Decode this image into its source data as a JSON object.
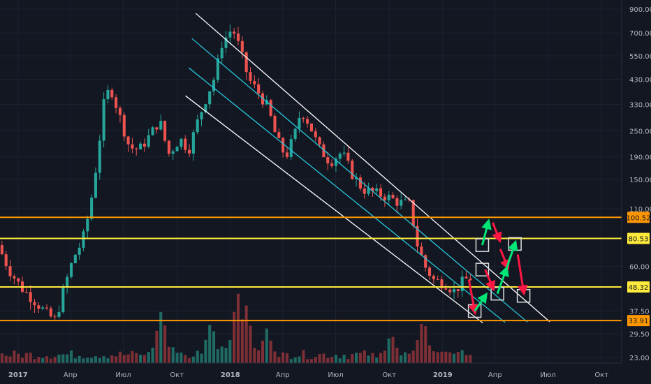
{
  "chart_data": {
    "type": "candlestick",
    "scale": "log",
    "grid": true,
    "ylim": [
      22,
      1000
    ],
    "y_ticks": [
      "900.00",
      "700.00",
      "550.00",
      "430.00",
      "330.00",
      "250.00",
      "190.00",
      "150.00",
      "110.00",
      "60.00",
      "37.50",
      "29.50",
      "23.00"
    ],
    "x_ticks": [
      "2017",
      "Апр",
      "Июл",
      "Окт",
      "2018",
      "Апр",
      "Июл",
      "Окт",
      "2019",
      "Апр",
      "Июл",
      "Окт"
    ],
    "levels": [
      {
        "label": "100.52",
        "value": 100.52,
        "color": "#ff9800"
      },
      {
        "label": "80.53",
        "value": 80.53,
        "color": "#ffeb3b"
      },
      {
        "label": "48.32",
        "value": 48.32,
        "color": "#ffeb3b"
      },
      {
        "label": "33.91",
        "value": 33.91,
        "color": "#ff9800"
      }
    ],
    "channel": {
      "outer_color": "#ffffff",
      "inner_color": "#26c6da",
      "start": "2017-11-15",
      "end": "2019-07-01"
    },
    "colors": {
      "up": "#26a69a",
      "down": "#ef5350",
      "volume_up": "#1f6b64",
      "volume_down": "#7d2f35",
      "background": "#131722",
      "grid": "#1e2230",
      "arrow_up": "#00e676",
      "arrow_down": "#ff1744"
    },
    "price_path": [
      [
        "2016-12-01",
        75
      ],
      [
        "2016-12-20",
        58
      ],
      [
        "2017-01-10",
        48
      ],
      [
        "2017-02-01",
        42
      ],
      [
        "2017-02-25",
        36
      ],
      [
        "2017-03-10",
        34
      ],
      [
        "2017-03-25",
        48
      ],
      [
        "2017-04-10",
        66
      ],
      [
        "2017-04-25",
        78
      ],
      [
        "2017-05-08",
        110
      ],
      [
        "2017-05-20",
        180
      ],
      [
        "2017-06-01",
        330
      ],
      [
        "2017-06-12",
        400
      ],
      [
        "2017-06-25",
        310
      ],
      [
        "2017-07-15",
        210
      ],
      [
        "2017-08-01",
        205
      ],
      [
        "2017-08-20",
        240
      ],
      [
        "2017-09-05",
        280
      ],
      [
        "2017-09-20",
        195
      ],
      [
        "2017-10-10",
        230
      ],
      [
        "2017-10-25",
        205
      ],
      [
        "2017-11-10",
        280
      ],
      [
        "2017-11-25",
        360
      ],
      [
        "2017-12-10",
        450
      ],
      [
        "2017-12-20",
        620
      ],
      [
        "2018-01-08",
        740
      ],
      [
        "2018-01-20",
        600
      ],
      [
        "2018-02-05",
        430
      ],
      [
        "2018-02-20",
        380
      ],
      [
        "2018-03-10",
        320
      ],
      [
        "2018-03-25",
        230
      ],
      [
        "2018-04-10",
        190
      ],
      [
        "2018-04-25",
        240
      ],
      [
        "2018-05-06",
        310
      ],
      [
        "2018-05-20",
        270
      ],
      [
        "2018-06-05",
        210
      ],
      [
        "2018-06-25",
        180
      ],
      [
        "2018-07-15",
        200
      ],
      [
        "2018-08-01",
        160
      ],
      [
        "2018-08-20",
        135
      ],
      [
        "2018-09-10",
        130
      ],
      [
        "2018-10-01",
        125
      ],
      [
        "2018-10-20",
        118
      ],
      [
        "2018-11-10",
        115
      ],
      [
        "2018-11-20",
        78
      ],
      [
        "2018-12-05",
        60
      ],
      [
        "2018-12-20",
        52
      ],
      [
        "2019-01-10",
        50
      ],
      [
        "2019-01-25",
        46
      ],
      [
        "2019-02-10",
        52
      ],
      [
        "2019-02-20",
        53
      ]
    ],
    "volume_peaks": [
      [
        "2017-09-01",
        0.7
      ],
      [
        "2017-11-25",
        0.55
      ],
      [
        "2018-01-10",
        0.95
      ],
      [
        "2018-01-25",
        0.75
      ],
      [
        "2018-03-01",
        0.45
      ],
      [
        "2018-10-01",
        0.4
      ],
      [
        "2018-11-25",
        0.6
      ],
      [
        "2019-02-01",
        0.15
      ]
    ],
    "forecast_boxes": [
      {
        "date": "2019-02-25",
        "value": 37.5
      },
      {
        "date": "2019-03-10",
        "value": 58
      },
      {
        "date": "2019-03-10",
        "value": 75
      },
      {
        "date": "2019-04-05",
        "value": 45
      },
      {
        "date": "2019-05-05",
        "value": 76
      },
      {
        "date": "2019-05-20",
        "value": 44
      }
    ],
    "forecast_arrows": [
      {
        "from": [
          "2019-02-15",
          52
        ],
        "to": [
          "2019-02-25",
          37.5
        ],
        "color": "red"
      },
      {
        "from": [
          "2019-02-25",
          37.5
        ],
        "to": [
          "2019-03-15",
          44
        ],
        "color": "green"
      },
      {
        "from": [
          "2019-03-10",
          75
        ],
        "to": [
          "2019-03-20",
          95
        ],
        "color": "green"
      },
      {
        "from": [
          "2019-03-28",
          95
        ],
        "to": [
          "2019-04-08",
          80
        ],
        "color": "red"
      },
      {
        "from": [
          "2019-03-15",
          58
        ],
        "to": [
          "2019-03-28",
          48
        ],
        "color": "red"
      },
      {
        "from": [
          "2019-04-05",
          45
        ],
        "to": [
          "2019-04-20",
          58
        ],
        "color": "green"
      },
      {
        "from": [
          "2019-04-10",
          72
        ],
        "to": [
          "2019-04-22",
          60
        ],
        "color": "red"
      },
      {
        "from": [
          "2019-04-20",
          58
        ],
        "to": [
          "2019-05-05",
          76
        ],
        "color": "green"
      },
      {
        "from": [
          "2019-05-10",
          68
        ],
        "to": [
          "2019-05-20",
          46
        ],
        "color": "red"
      }
    ]
  }
}
